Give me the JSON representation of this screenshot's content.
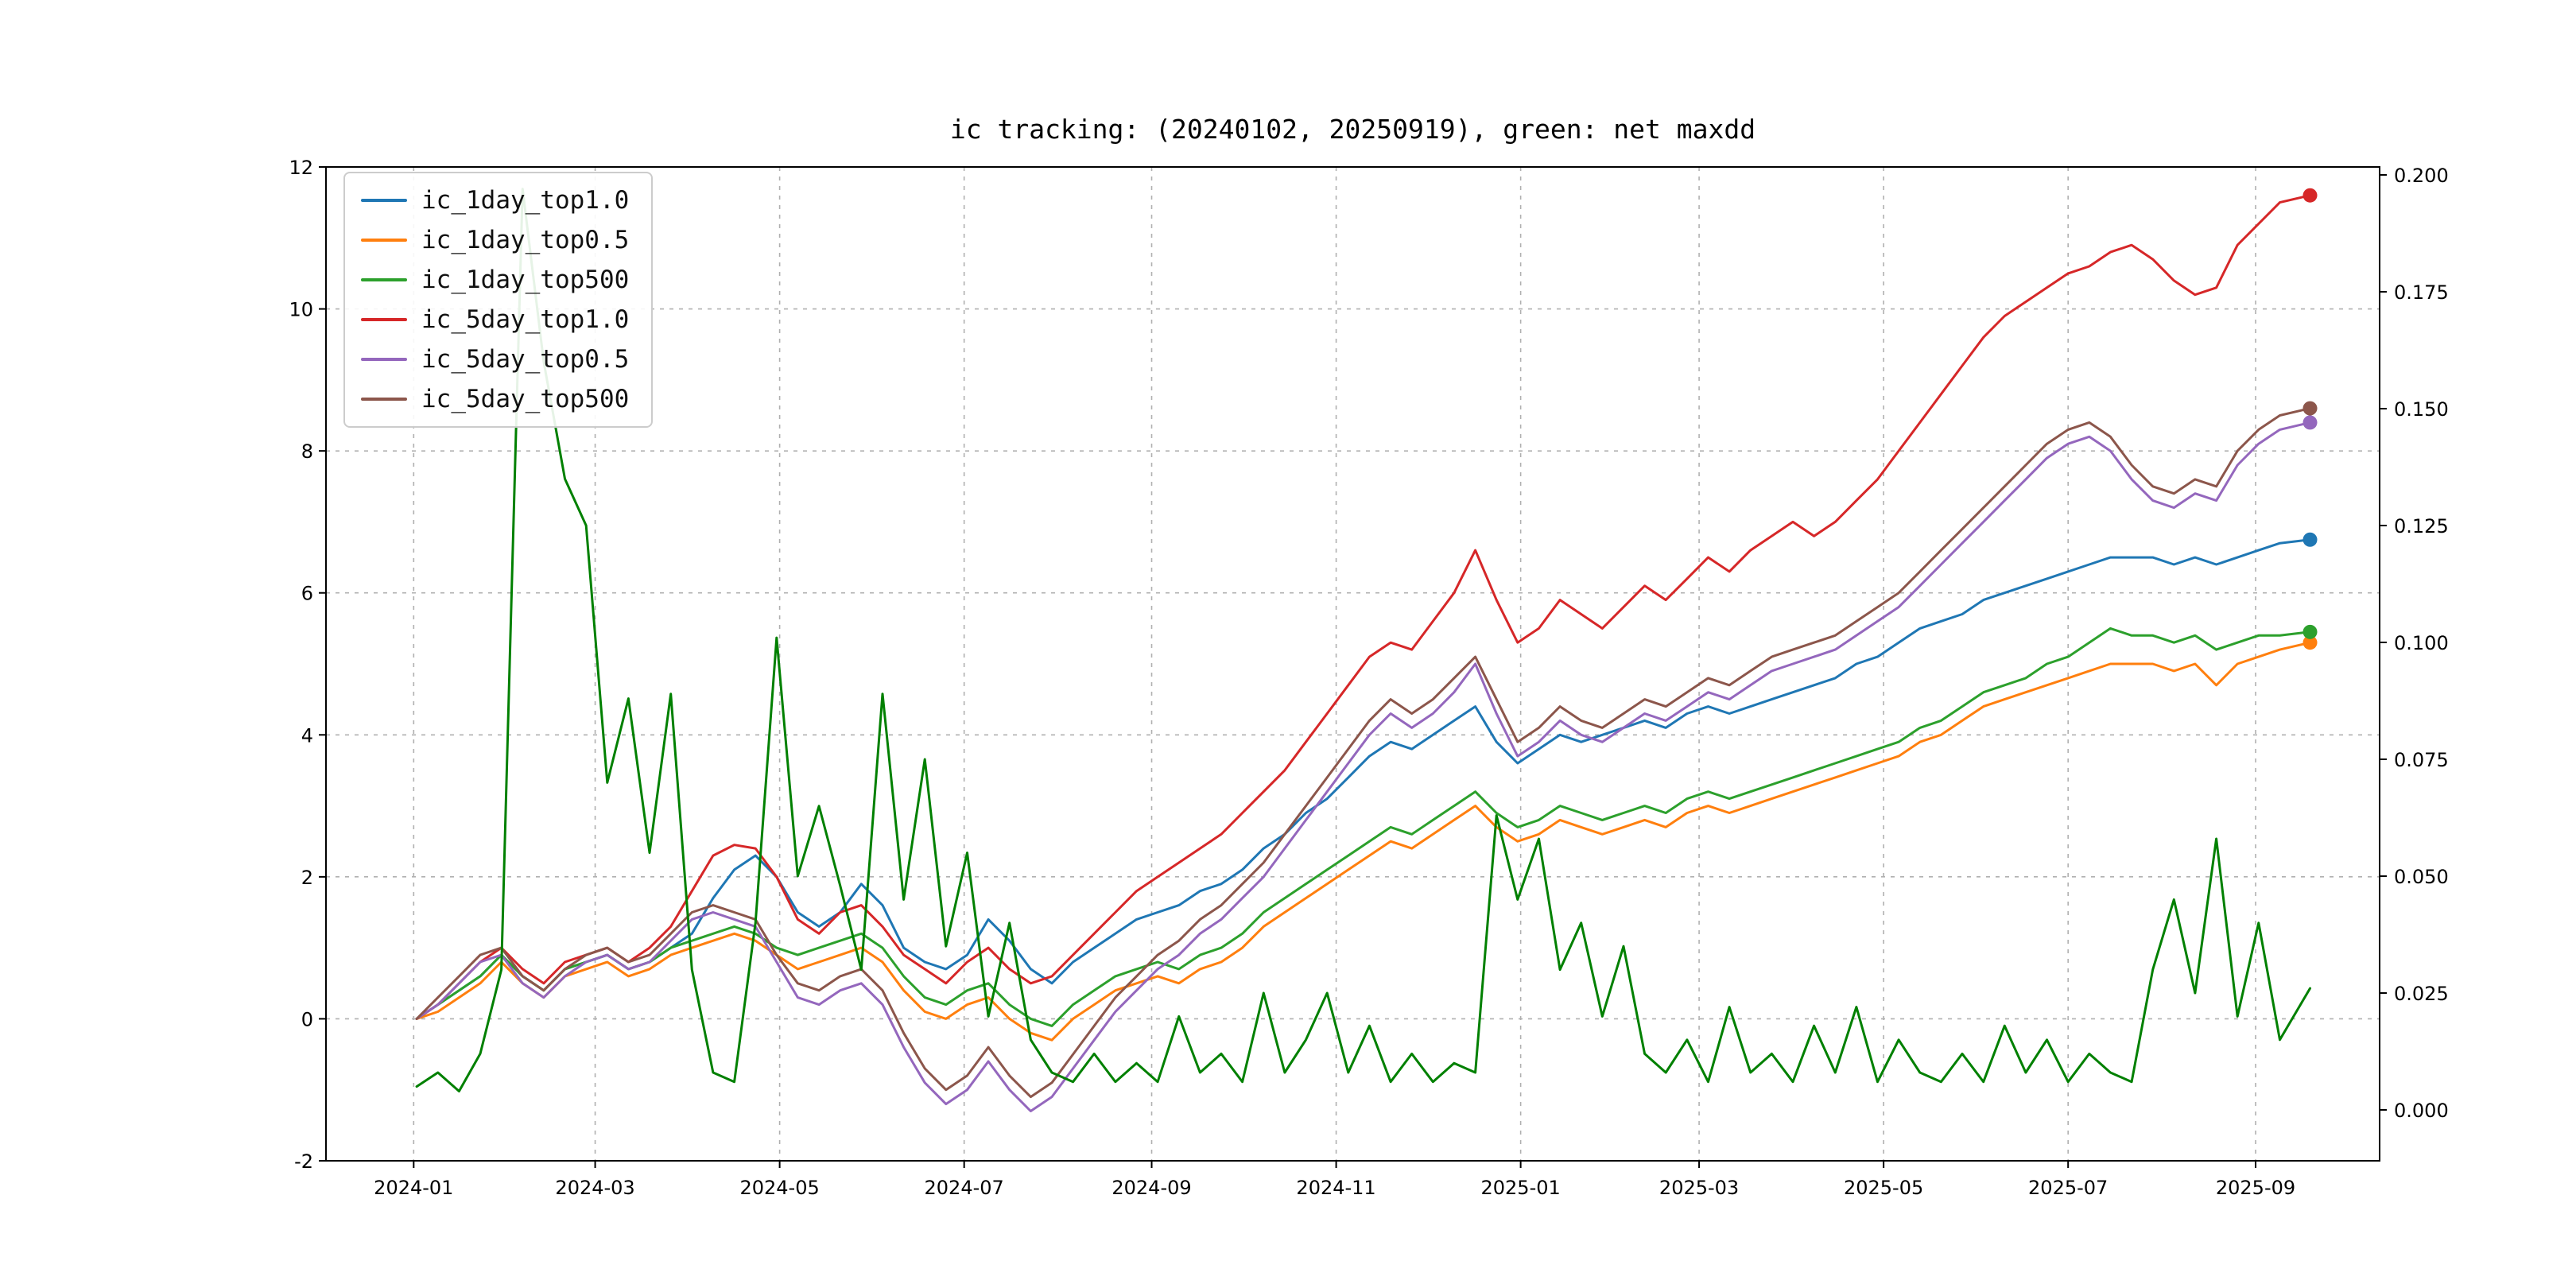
{
  "title": "ic tracking: (20240102, 20250919), green: net maxdd",
  "chart_data": {
    "type": "line",
    "title": "ic tracking: (20240102, 20250919), green: net maxdd",
    "x_description": "trading dates from 20240102 to 20250919, sampled weekly, expressed as days since 2024-01-01",
    "x_days": [
      1,
      8,
      15,
      22,
      29,
      36,
      43,
      50,
      57,
      64,
      71,
      78,
      85,
      92,
      99,
      106,
      113,
      120,
      127,
      134,
      141,
      148,
      155,
      162,
      169,
      176,
      183,
      190,
      197,
      204,
      211,
      218,
      225,
      232,
      239,
      246,
      253,
      260,
      267,
      274,
      281,
      288,
      295,
      302,
      309,
      316,
      323,
      330,
      337,
      344,
      351,
      358,
      365,
      372,
      379,
      386,
      393,
      400,
      407,
      414,
      421,
      428,
      435,
      442,
      449,
      456,
      463,
      470,
      477,
      484,
      491,
      498,
      505,
      512,
      519,
      526,
      533,
      540,
      547,
      554,
      561,
      568,
      575,
      582,
      589,
      596,
      603,
      610,
      617,
      627
    ],
    "x_axis": {
      "min_day": -29,
      "max_day": 650,
      "ticks": [
        {
          "label": "2024-01",
          "day": 0
        },
        {
          "label": "2024-03",
          "day": 60
        },
        {
          "label": "2024-05",
          "day": 121
        },
        {
          "label": "2024-07",
          "day": 182
        },
        {
          "label": "2024-09",
          "day": 244
        },
        {
          "label": "2024-11",
          "day": 305
        },
        {
          "label": "2025-01",
          "day": 366
        },
        {
          "label": "2025-03",
          "day": 425
        },
        {
          "label": "2025-05",
          "day": 486
        },
        {
          "label": "2025-07",
          "day": 547
        },
        {
          "label": "2025-09",
          "day": 609
        }
      ]
    },
    "left_axis": {
      "min": -2,
      "max": 12,
      "tick_values": [
        -2,
        0,
        2,
        4,
        6,
        8,
        10,
        12
      ],
      "tick_labels": [
        "-2",
        "0",
        "2",
        "4",
        "6",
        "8",
        "10",
        "12"
      ]
    },
    "right_axis": {
      "min": 0.0,
      "max": 0.2,
      "tick_values": [
        0.0,
        0.025,
        0.05,
        0.075,
        0.1,
        0.125,
        0.15,
        0.175,
        0.2
      ],
      "tick_labels": [
        "0.000",
        "0.025",
        "0.050",
        "0.075",
        "0.100",
        "0.125",
        "0.150",
        "0.175",
        "0.200"
      ]
    },
    "grid": true,
    "legend_position": "upper left",
    "series": [
      {
        "name": "ic_1day_top1.0",
        "color": "#1f77b4",
        "axis": "left",
        "in_legend": true,
        "end_dot": true,
        "values": [
          0.0,
          0.2,
          0.4,
          0.6,
          0.9,
          0.6,
          0.4,
          0.7,
          0.8,
          0.9,
          0.7,
          0.8,
          1.0,
          1.2,
          1.7,
          2.1,
          2.3,
          2.0,
          1.5,
          1.3,
          1.5,
          1.9,
          1.6,
          1.0,
          0.8,
          0.7,
          0.9,
          1.4,
          1.1,
          0.7,
          0.5,
          0.8,
          1.0,
          1.2,
          1.4,
          1.5,
          1.6,
          1.8,
          1.9,
          2.1,
          2.4,
          2.6,
          2.9,
          3.1,
          3.4,
          3.7,
          3.9,
          3.8,
          4.0,
          4.2,
          4.4,
          3.9,
          3.6,
          3.8,
          4.0,
          3.9,
          4.0,
          4.1,
          4.2,
          4.1,
          4.3,
          4.4,
          4.3,
          4.4,
          4.5,
          4.6,
          4.7,
          4.8,
          5.0,
          5.1,
          5.3,
          5.5,
          5.6,
          5.7,
          5.9,
          6.0,
          6.1,
          6.2,
          6.3,
          6.4,
          6.5,
          6.5,
          6.5,
          6.4,
          6.5,
          6.4,
          6.5,
          6.6,
          6.7,
          6.75
        ]
      },
      {
        "name": "ic_1day_top0.5",
        "color": "#ff7f0e",
        "axis": "left",
        "in_legend": true,
        "end_dot": true,
        "values": [
          0.0,
          0.1,
          0.3,
          0.5,
          0.8,
          0.5,
          0.3,
          0.6,
          0.7,
          0.8,
          0.6,
          0.7,
          0.9,
          1.0,
          1.1,
          1.2,
          1.1,
          0.9,
          0.7,
          0.8,
          0.9,
          1.0,
          0.8,
          0.4,
          0.1,
          0.0,
          0.2,
          0.3,
          0.0,
          -0.2,
          -0.3,
          0.0,
          0.2,
          0.4,
          0.5,
          0.6,
          0.5,
          0.7,
          0.8,
          1.0,
          1.3,
          1.5,
          1.7,
          1.9,
          2.1,
          2.3,
          2.5,
          2.4,
          2.6,
          2.8,
          3.0,
          2.7,
          2.5,
          2.6,
          2.8,
          2.7,
          2.6,
          2.7,
          2.8,
          2.7,
          2.9,
          3.0,
          2.9,
          3.0,
          3.1,
          3.2,
          3.3,
          3.4,
          3.5,
          3.6,
          3.7,
          3.9,
          4.0,
          4.2,
          4.4,
          4.5,
          4.6,
          4.7,
          4.8,
          4.9,
          5.0,
          5.0,
          5.0,
          4.9,
          5.0,
          4.7,
          5.0,
          5.1,
          5.2,
          5.3
        ]
      },
      {
        "name": "ic_1day_top500",
        "color": "#2ca02c",
        "axis": "left",
        "in_legend": true,
        "end_dot": true,
        "values": [
          0.0,
          0.2,
          0.4,
          0.6,
          0.9,
          0.6,
          0.4,
          0.7,
          0.8,
          0.9,
          0.7,
          0.8,
          1.0,
          1.1,
          1.2,
          1.3,
          1.2,
          1.0,
          0.9,
          1.0,
          1.1,
          1.2,
          1.0,
          0.6,
          0.3,
          0.2,
          0.4,
          0.5,
          0.2,
          0.0,
          -0.1,
          0.2,
          0.4,
          0.6,
          0.7,
          0.8,
          0.7,
          0.9,
          1.0,
          1.2,
          1.5,
          1.7,
          1.9,
          2.1,
          2.3,
          2.5,
          2.7,
          2.6,
          2.8,
          3.0,
          3.2,
          2.9,
          2.7,
          2.8,
          3.0,
          2.9,
          2.8,
          2.9,
          3.0,
          2.9,
          3.1,
          3.2,
          3.1,
          3.2,
          3.3,
          3.4,
          3.5,
          3.6,
          3.7,
          3.8,
          3.9,
          4.1,
          4.2,
          4.4,
          4.6,
          4.7,
          4.8,
          5.0,
          5.1,
          5.3,
          5.5,
          5.4,
          5.4,
          5.3,
          5.4,
          5.2,
          5.3,
          5.4,
          5.4,
          5.45
        ]
      },
      {
        "name": "ic_5day_top1.0",
        "color": "#d62728",
        "axis": "left",
        "in_legend": true,
        "end_dot": true,
        "values": [
          0.0,
          0.2,
          0.5,
          0.8,
          1.0,
          0.7,
          0.5,
          0.8,
          0.9,
          1.0,
          0.8,
          1.0,
          1.3,
          1.8,
          2.3,
          2.45,
          2.4,
          2.0,
          1.4,
          1.2,
          1.5,
          1.6,
          1.3,
          0.9,
          0.7,
          0.5,
          0.8,
          1.0,
          0.7,
          0.5,
          0.6,
          0.9,
          1.2,
          1.5,
          1.8,
          2.0,
          2.2,
          2.4,
          2.6,
          2.9,
          3.2,
          3.5,
          3.9,
          4.3,
          4.7,
          5.1,
          5.3,
          5.2,
          5.6,
          6.0,
          6.6,
          5.9,
          5.3,
          5.5,
          5.9,
          5.7,
          5.5,
          5.8,
          6.1,
          5.9,
          6.2,
          6.5,
          6.3,
          6.6,
          6.8,
          7.0,
          6.8,
          7.0,
          7.3,
          7.6,
          8.0,
          8.4,
          8.8,
          9.2,
          9.6,
          9.9,
          10.1,
          10.3,
          10.5,
          10.6,
          10.8,
          10.9,
          10.7,
          10.4,
          10.2,
          10.3,
          10.9,
          11.2,
          11.5,
          11.6
        ]
      },
      {
        "name": "ic_5day_top0.5",
        "color": "#9467bd",
        "axis": "left",
        "in_legend": true,
        "end_dot": true,
        "values": [
          0.0,
          0.2,
          0.5,
          0.8,
          0.9,
          0.5,
          0.3,
          0.6,
          0.8,
          0.9,
          0.7,
          0.8,
          1.1,
          1.4,
          1.5,
          1.4,
          1.3,
          0.8,
          0.3,
          0.2,
          0.4,
          0.5,
          0.2,
          -0.4,
          -0.9,
          -1.2,
          -1.0,
          -0.6,
          -1.0,
          -1.3,
          -1.1,
          -0.7,
          -0.3,
          0.1,
          0.4,
          0.7,
          0.9,
          1.2,
          1.4,
          1.7,
          2.0,
          2.4,
          2.8,
          3.2,
          3.6,
          4.0,
          4.3,
          4.1,
          4.3,
          4.6,
          5.0,
          4.3,
          3.7,
          3.9,
          4.2,
          4.0,
          3.9,
          4.1,
          4.3,
          4.2,
          4.4,
          4.6,
          4.5,
          4.7,
          4.9,
          5.0,
          5.1,
          5.2,
          5.4,
          5.6,
          5.8,
          6.1,
          6.4,
          6.7,
          7.0,
          7.3,
          7.6,
          7.9,
          8.1,
          8.2,
          8.0,
          7.6,
          7.3,
          7.2,
          7.4,
          7.3,
          7.8,
          8.1,
          8.3,
          8.4
        ]
      },
      {
        "name": "ic_5day_top500",
        "color": "#8c564b",
        "axis": "left",
        "in_legend": true,
        "end_dot": true,
        "values": [
          0.0,
          0.3,
          0.6,
          0.9,
          1.0,
          0.6,
          0.4,
          0.7,
          0.9,
          1.0,
          0.8,
          0.9,
          1.2,
          1.5,
          1.6,
          1.5,
          1.4,
          0.9,
          0.5,
          0.4,
          0.6,
          0.7,
          0.4,
          -0.2,
          -0.7,
          -1.0,
          -0.8,
          -0.4,
          -0.8,
          -1.1,
          -0.9,
          -0.5,
          -0.1,
          0.3,
          0.6,
          0.9,
          1.1,
          1.4,
          1.6,
          1.9,
          2.2,
          2.6,
          3.0,
          3.4,
          3.8,
          4.2,
          4.5,
          4.3,
          4.5,
          4.8,
          5.1,
          4.5,
          3.9,
          4.1,
          4.4,
          4.2,
          4.1,
          4.3,
          4.5,
          4.4,
          4.6,
          4.8,
          4.7,
          4.9,
          5.1,
          5.2,
          5.3,
          5.4,
          5.6,
          5.8,
          6.0,
          6.3,
          6.6,
          6.9,
          7.2,
          7.5,
          7.8,
          8.1,
          8.3,
          8.4,
          8.2,
          7.8,
          7.5,
          7.4,
          7.6,
          7.5,
          8.0,
          8.3,
          8.5,
          8.6
        ]
      },
      {
        "name": "net_maxdd",
        "color": "#008000",
        "axis": "right",
        "in_legend": false,
        "end_dot": false,
        "values": [
          0.005,
          0.008,
          0.004,
          0.012,
          0.03,
          0.197,
          0.16,
          0.135,
          0.125,
          0.07,
          0.088,
          0.055,
          0.089,
          0.03,
          0.008,
          0.006,
          0.04,
          0.101,
          0.05,
          0.065,
          0.048,
          0.03,
          0.089,
          0.045,
          0.075,
          0.035,
          0.055,
          0.02,
          0.04,
          0.015,
          0.008,
          0.006,
          0.012,
          0.006,
          0.01,
          0.006,
          0.02,
          0.008,
          0.012,
          0.006,
          0.025,
          0.008,
          0.015,
          0.025,
          0.008,
          0.018,
          0.006,
          0.012,
          0.006,
          0.01,
          0.008,
          0.063,
          0.045,
          0.058,
          0.03,
          0.04,
          0.02,
          0.035,
          0.012,
          0.008,
          0.015,
          0.006,
          0.022,
          0.008,
          0.012,
          0.006,
          0.018,
          0.008,
          0.022,
          0.006,
          0.015,
          0.008,
          0.006,
          0.012,
          0.006,
          0.018,
          0.008,
          0.015,
          0.006,
          0.012,
          0.008,
          0.006,
          0.03,
          0.045,
          0.025,
          0.058,
          0.02,
          0.04,
          0.015,
          0.026
        ]
      }
    ]
  },
  "colors": {
    "grid": "#b0b0b0",
    "spine": "#000000",
    "background": "#ffffff"
  }
}
